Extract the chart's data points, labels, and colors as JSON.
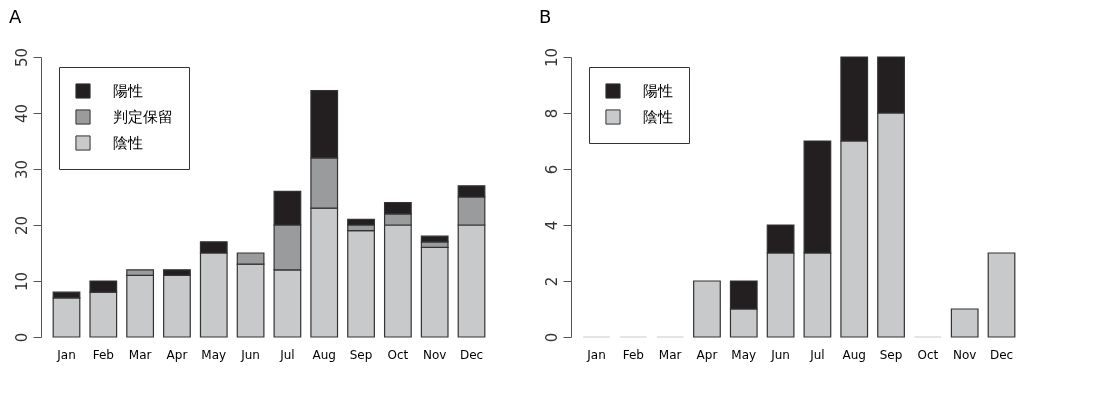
{
  "chart_data": [
    {
      "type": "bar",
      "title": "A",
      "stacked": true,
      "legend": "top left",
      "grid": false,
      "categories": [
        "Jan",
        "Feb",
        "Mar",
        "Apr",
        "May",
        "Jun",
        "Jul",
        "Aug",
        "Sep",
        "Oct",
        "Nov",
        "Dec"
      ],
      "ylim": [
        0,
        50
      ],
      "yticks": [
        0,
        10,
        20,
        30,
        40,
        50
      ],
      "series": [
        {
          "name": "陰性",
          "color": "#c8c9cb",
          "values": [
            7,
            8,
            11,
            11,
            15,
            13,
            12,
            23,
            19,
            20,
            16,
            20
          ]
        },
        {
          "name": "判定保留",
          "color": "#9a9b9d",
          "values": [
            0,
            0,
            1,
            0,
            0,
            2,
            8,
            9,
            1,
            2,
            1,
            5
          ]
        },
        {
          "name": "陽性",
          "color": "#231f20",
          "values": [
            1,
            2,
            0,
            1,
            2,
            0,
            6,
            12,
            1,
            2,
            1,
            2
          ]
        }
      ]
    },
    {
      "type": "bar",
      "title": "B",
      "stacked": true,
      "legend": "top left",
      "grid": false,
      "categories": [
        "Jan",
        "Feb",
        "Mar",
        "Apr",
        "May",
        "Jun",
        "Jul",
        "Aug",
        "Sep",
        "Oct",
        "Nov",
        "Dec"
      ],
      "ylim": [
        0,
        10
      ],
      "yticks": [
        0,
        2,
        4,
        6,
        8,
        10
      ],
      "series": [
        {
          "name": "陰性",
          "color": "#c8c9cb",
          "values": [
            0,
            0,
            0,
            2,
            1,
            3,
            3,
            7,
            8,
            0,
            1,
            3
          ]
        },
        {
          "name": "陽性",
          "color": "#231f20",
          "values": [
            0,
            0,
            0,
            0,
            1,
            1,
            4,
            3,
            2,
            0,
            0,
            0
          ]
        }
      ]
    }
  ]
}
